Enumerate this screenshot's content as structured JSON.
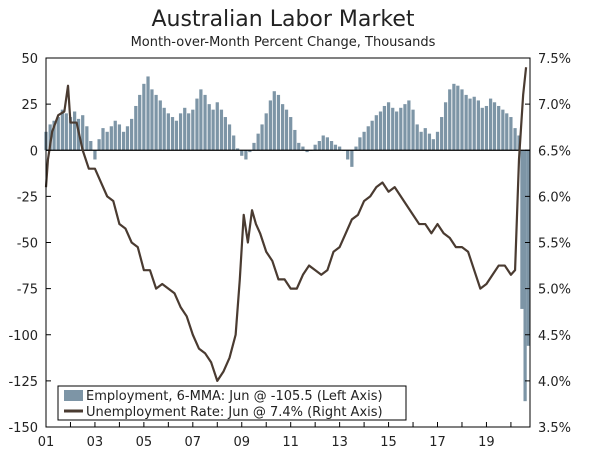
{
  "chart_data": {
    "type": "bar+line",
    "title": "Australian Labor Market",
    "subtitle": "Month-over-Month Percent Change, Thousands",
    "x_ticks": [
      "01",
      "03",
      "05",
      "07",
      "09",
      "11",
      "13",
      "15",
      "17",
      "19"
    ],
    "y_left": {
      "range": [
        -150,
        50
      ],
      "ticks": [
        "50",
        "25",
        "0",
        "-25",
        "-50",
        "-75",
        "-100",
        "-125",
        "-150"
      ]
    },
    "y_right": {
      "range": [
        3.5,
        7.5
      ],
      "ticks": [
        "7.5%",
        "7.0%",
        "6.5%",
        "6.0%",
        "5.5%",
        "5.0%",
        "4.5%",
        "4.0%",
        "3.5%"
      ]
    },
    "grid": false,
    "legend_position": "bottom-left",
    "colors": {
      "employment": "#7d95a6",
      "unemployment": "#4a3b31",
      "zero_line": "#000000"
    },
    "series": [
      {
        "name": "Employment, 6-MMA: Jun @ -105.5 (Left Axis)",
        "axis": "left",
        "kind": "bar",
        "points": [
          [
            2001.0,
            10
          ],
          [
            2001.17,
            14
          ],
          [
            2001.33,
            16
          ],
          [
            2001.5,
            18
          ],
          [
            2001.67,
            22
          ],
          [
            2001.83,
            20
          ],
          [
            2002.0,
            18
          ],
          [
            2002.17,
            21
          ],
          [
            2002.33,
            17
          ],
          [
            2002.5,
            19
          ],
          [
            2002.67,
            13
          ],
          [
            2002.83,
            5
          ],
          [
            2003.0,
            -5
          ],
          [
            2003.17,
            6
          ],
          [
            2003.33,
            12
          ],
          [
            2003.5,
            10
          ],
          [
            2003.67,
            13
          ],
          [
            2003.83,
            16
          ],
          [
            2004.0,
            14
          ],
          [
            2004.17,
            10
          ],
          [
            2004.33,
            13
          ],
          [
            2004.5,
            17
          ],
          [
            2004.67,
            24
          ],
          [
            2004.83,
            30
          ],
          [
            2005.0,
            36
          ],
          [
            2005.17,
            40
          ],
          [
            2005.33,
            33
          ],
          [
            2005.5,
            30
          ],
          [
            2005.67,
            27
          ],
          [
            2005.83,
            23
          ],
          [
            2006.0,
            20
          ],
          [
            2006.17,
            18
          ],
          [
            2006.33,
            16
          ],
          [
            2006.5,
            20
          ],
          [
            2006.67,
            23
          ],
          [
            2006.83,
            20
          ],
          [
            2007.0,
            22
          ],
          [
            2007.17,
            28
          ],
          [
            2007.33,
            33
          ],
          [
            2007.5,
            30
          ],
          [
            2007.67,
            25
          ],
          [
            2007.83,
            22
          ],
          [
            2008.0,
            26
          ],
          [
            2008.17,
            22
          ],
          [
            2008.33,
            18
          ],
          [
            2008.5,
            14
          ],
          [
            2008.67,
            8
          ],
          [
            2008.83,
            1
          ],
          [
            2009.0,
            -3
          ],
          [
            2009.17,
            -5
          ],
          [
            2009.33,
            -1
          ],
          [
            2009.5,
            4
          ],
          [
            2009.67,
            9
          ],
          [
            2009.83,
            14
          ],
          [
            2010.0,
            20
          ],
          [
            2010.17,
            27
          ],
          [
            2010.33,
            32
          ],
          [
            2010.5,
            30
          ],
          [
            2010.67,
            25
          ],
          [
            2010.83,
            22
          ],
          [
            2011.0,
            18
          ],
          [
            2011.17,
            11
          ],
          [
            2011.33,
            4
          ],
          [
            2011.5,
            2
          ],
          [
            2011.67,
            -1
          ],
          [
            2011.83,
            0
          ],
          [
            2012.0,
            3
          ],
          [
            2012.17,
            5
          ],
          [
            2012.33,
            8
          ],
          [
            2012.5,
            7
          ],
          [
            2012.67,
            5
          ],
          [
            2012.83,
            3
          ],
          [
            2013.0,
            2
          ],
          [
            2013.17,
            0
          ],
          [
            2013.33,
            -5
          ],
          [
            2013.5,
            -9
          ],
          [
            2013.67,
            2
          ],
          [
            2013.83,
            7
          ],
          [
            2014.0,
            10
          ],
          [
            2014.17,
            13
          ],
          [
            2014.33,
            16
          ],
          [
            2014.5,
            19
          ],
          [
            2014.67,
            21
          ],
          [
            2014.83,
            24
          ],
          [
            2015.0,
            26
          ],
          [
            2015.17,
            23
          ],
          [
            2015.33,
            21
          ],
          [
            2015.5,
            23
          ],
          [
            2015.67,
            25
          ],
          [
            2015.83,
            27
          ],
          [
            2016.0,
            22
          ],
          [
            2016.17,
            14
          ],
          [
            2016.33,
            10
          ],
          [
            2016.5,
            12
          ],
          [
            2016.67,
            9
          ],
          [
            2016.83,
            6
          ],
          [
            2017.0,
            10
          ],
          [
            2017.17,
            18
          ],
          [
            2017.33,
            26
          ],
          [
            2017.5,
            33
          ],
          [
            2017.67,
            36
          ],
          [
            2017.83,
            35
          ],
          [
            2018.0,
            33
          ],
          [
            2018.17,
            30
          ],
          [
            2018.33,
            28
          ],
          [
            2018.5,
            29
          ],
          [
            2018.67,
            27
          ],
          [
            2018.83,
            23
          ],
          [
            2019.0,
            24
          ],
          [
            2019.17,
            28
          ],
          [
            2019.33,
            26
          ],
          [
            2019.5,
            24
          ],
          [
            2019.67,
            22
          ],
          [
            2019.83,
            20
          ],
          [
            2020.0,
            18
          ],
          [
            2020.17,
            12
          ],
          [
            2020.33,
            8
          ],
          [
            2020.45,
            -86
          ],
          [
            2020.58,
            -136
          ],
          [
            2020.71,
            -106
          ]
        ]
      },
      {
        "name": "Unemployment Rate: Jun @ 7.4% (Right Axis)",
        "axis": "right",
        "kind": "line",
        "points": [
          [
            2001.0,
            6.1
          ],
          [
            2001.08,
            6.4
          ],
          [
            2001.25,
            6.7
          ],
          [
            2001.5,
            6.88
          ],
          [
            2001.75,
            6.92
          ],
          [
            2001.9,
            7.2
          ],
          [
            2002.0,
            6.8
          ],
          [
            2002.25,
            6.8
          ],
          [
            2002.5,
            6.5
          ],
          [
            2002.75,
            6.3
          ],
          [
            2003.0,
            6.3
          ],
          [
            2003.25,
            6.15
          ],
          [
            2003.5,
            6.0
          ],
          [
            2003.75,
            5.95
          ],
          [
            2004.0,
            5.7
          ],
          [
            2004.25,
            5.65
          ],
          [
            2004.5,
            5.5
          ],
          [
            2004.75,
            5.45
          ],
          [
            2005.0,
            5.2
          ],
          [
            2005.25,
            5.2
          ],
          [
            2005.5,
            5.0
          ],
          [
            2005.75,
            5.05
          ],
          [
            2006.0,
            5.0
          ],
          [
            2006.25,
            4.95
          ],
          [
            2006.5,
            4.8
          ],
          [
            2006.75,
            4.7
          ],
          [
            2007.0,
            4.5
          ],
          [
            2007.25,
            4.35
          ],
          [
            2007.5,
            4.3
          ],
          [
            2007.75,
            4.2
          ],
          [
            2008.0,
            4.0
          ],
          [
            2008.25,
            4.1
          ],
          [
            2008.5,
            4.25
          ],
          [
            2008.75,
            4.5
          ],
          [
            2008.92,
            5.1
          ],
          [
            2009.08,
            5.8
          ],
          [
            2009.25,
            5.5
          ],
          [
            2009.42,
            5.85
          ],
          [
            2009.58,
            5.7
          ],
          [
            2009.75,
            5.6
          ],
          [
            2010.0,
            5.4
          ],
          [
            2010.25,
            5.3
          ],
          [
            2010.5,
            5.1
          ],
          [
            2010.75,
            5.1
          ],
          [
            2011.0,
            5.0
          ],
          [
            2011.25,
            5.0
          ],
          [
            2011.5,
            5.15
          ],
          [
            2011.75,
            5.25
          ],
          [
            2012.0,
            5.2
          ],
          [
            2012.25,
            5.15
          ],
          [
            2012.5,
            5.2
          ],
          [
            2012.75,
            5.4
          ],
          [
            2013.0,
            5.45
          ],
          [
            2013.25,
            5.6
          ],
          [
            2013.5,
            5.75
          ],
          [
            2013.75,
            5.8
          ],
          [
            2014.0,
            5.95
          ],
          [
            2014.25,
            6.0
          ],
          [
            2014.5,
            6.1
          ],
          [
            2014.75,
            6.15
          ],
          [
            2015.0,
            6.05
          ],
          [
            2015.25,
            6.1
          ],
          [
            2015.5,
            6.0
          ],
          [
            2015.75,
            5.9
          ],
          [
            2016.0,
            5.8
          ],
          [
            2016.25,
            5.7
          ],
          [
            2016.5,
            5.7
          ],
          [
            2016.75,
            5.6
          ],
          [
            2017.0,
            5.7
          ],
          [
            2017.25,
            5.6
          ],
          [
            2017.5,
            5.55
          ],
          [
            2017.75,
            5.45
          ],
          [
            2018.0,
            5.45
          ],
          [
            2018.25,
            5.4
          ],
          [
            2018.5,
            5.2
          ],
          [
            2018.75,
            5.0
          ],
          [
            2019.0,
            5.05
          ],
          [
            2019.25,
            5.15
          ],
          [
            2019.5,
            5.25
          ],
          [
            2019.75,
            5.25
          ],
          [
            2020.0,
            5.15
          ],
          [
            2020.17,
            5.2
          ],
          [
            2020.33,
            6.4
          ],
          [
            2020.5,
            7.1
          ],
          [
            2020.62,
            7.4
          ]
        ]
      }
    ]
  }
}
